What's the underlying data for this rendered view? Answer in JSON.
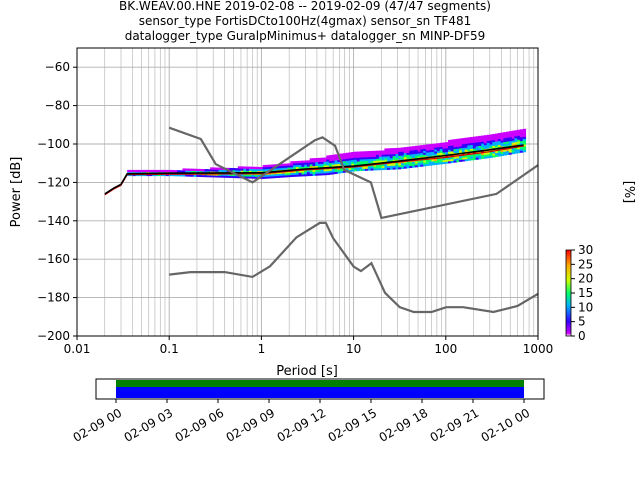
{
  "title": {
    "line1": "BK.WEAV.00.HNE   2019-02-08 -- 2019-02-09  (47/47 segments)",
    "line2": "sensor_type FortisDCto100Hz(4gmax) sensor_sn TF481",
    "line3": "datalogger_type GuralpMinimus+ datalogger_sn MINP-DF59"
  },
  "chart_data": {
    "type": "heatmap",
    "subtype": "probabilistic-power-spectral-density",
    "xlabel": "Period [s]",
    "ylabel": "Power [dB]",
    "x_scale": "log",
    "xlim": [
      0.01,
      1000
    ],
    "ylim": [
      -200,
      -50
    ],
    "x_ticks": [
      {
        "value": 0.01,
        "label": "0.01"
      },
      {
        "value": 0.1,
        "label": "0.1"
      },
      {
        "value": 1,
        "label": "1"
      },
      {
        "value": 10,
        "label": "10"
      },
      {
        "value": 100,
        "label": "100"
      },
      {
        "value": 1000,
        "label": "1000"
      }
    ],
    "y_ticks": [
      -60,
      -80,
      -100,
      -120,
      -140,
      -160,
      -180,
      -200
    ],
    "grid": true,
    "colorbar": {
      "label": "[%]",
      "min": 0,
      "max": 30,
      "ticks": [
        0,
        5,
        10,
        15,
        20,
        25,
        30
      ],
      "colors": [
        "#ffffff",
        "#cc00ff",
        "#3300ff",
        "#00b0ff",
        "#00ff66",
        "#ccff00",
        "#ffaa00",
        "#ff0000"
      ]
    },
    "noise_models": [
      {
        "model": "NHNM",
        "points": [
          [
            0.1,
            -91.5
          ],
          [
            0.22,
            -97.4
          ],
          [
            0.32,
            -110.5
          ],
          [
            0.8,
            -120
          ],
          [
            3.8,
            -98
          ],
          [
            4.6,
            -96.5
          ],
          [
            6.3,
            -101
          ],
          [
            7.9,
            -113.5
          ],
          [
            15.4,
            -120
          ],
          [
            20,
            -138.5
          ],
          [
            354.8,
            -126
          ],
          [
            1000,
            -111
          ]
        ]
      },
      {
        "model": "NLNM",
        "points": [
          [
            0.1,
            -168
          ],
          [
            0.17,
            -166.7
          ],
          [
            0.4,
            -166.7
          ],
          [
            0.8,
            -169.2
          ],
          [
            1.24,
            -163.7
          ],
          [
            2.4,
            -148.6
          ],
          [
            4.3,
            -141.1
          ],
          [
            5,
            -141.1
          ],
          [
            6,
            -149
          ],
          [
            10,
            -163.8
          ],
          [
            12,
            -166.2
          ],
          [
            15.6,
            -162.1
          ],
          [
            21.9,
            -177.5
          ],
          [
            31.6,
            -185
          ],
          [
            45,
            -187.5
          ],
          [
            70,
            -187.5
          ],
          [
            101,
            -185
          ],
          [
            154,
            -185
          ],
          [
            328,
            -187.5
          ],
          [
            600,
            -184.4
          ],
          [
            1000,
            -178
          ]
        ]
      }
    ],
    "mean_curve": [
      [
        0.02,
        -126
      ],
      [
        0.025,
        -123
      ],
      [
        0.03,
        -121
      ],
      [
        0.035,
        -115.5
      ],
      [
        0.1,
        -115.2
      ],
      [
        1,
        -115
      ],
      [
        3,
        -113
      ],
      [
        10,
        -111.5
      ],
      [
        30,
        -109
      ],
      [
        100,
        -106
      ],
      [
        300,
        -103
      ],
      [
        700,
        -100.5
      ]
    ],
    "mode_curve": [
      [
        0.02,
        -126.5
      ],
      [
        0.025,
        -123.5
      ],
      [
        0.03,
        -121.5
      ],
      [
        0.035,
        -116
      ],
      [
        0.1,
        -115.8
      ],
      [
        1,
        -115.5
      ],
      [
        3,
        -113.5
      ],
      [
        10,
        -112
      ],
      [
        30,
        -109.5
      ],
      [
        100,
        -107
      ],
      [
        300,
        -104
      ],
      [
        700,
        -101
      ]
    ],
    "upper_envelope": [
      [
        0.035,
        -114.5
      ],
      [
        0.1,
        -114
      ],
      [
        1,
        -112
      ],
      [
        2,
        -110
      ],
      [
        5,
        -107
      ],
      [
        10,
        -105
      ],
      [
        30,
        -102.5
      ],
      [
        100,
        -99
      ],
      [
        300,
        -95
      ],
      [
        700,
        -93
      ]
    ],
    "lower_envelope": [
      [
        0.035,
        -116.5
      ],
      [
        0.1,
        -116.5
      ],
      [
        1,
        -118
      ],
      [
        2,
        -117
      ],
      [
        5,
        -116
      ],
      [
        10,
        -114
      ],
      [
        30,
        -113
      ],
      [
        100,
        -110
      ],
      [
        300,
        -107
      ],
      [
        700,
        -104
      ]
    ],
    "timeline": {
      "tick_labels": [
        "02-09 00",
        "02-09 03",
        "02-09 06",
        "02-09 09",
        "02-09 12",
        "02-09 15",
        "02-09 18",
        "02-09 21",
        "02-10 00"
      ],
      "bars": [
        {
          "name": "data",
          "color": "#0000ff"
        },
        {
          "name": "psd",
          "color": "#008000"
        }
      ]
    }
  }
}
